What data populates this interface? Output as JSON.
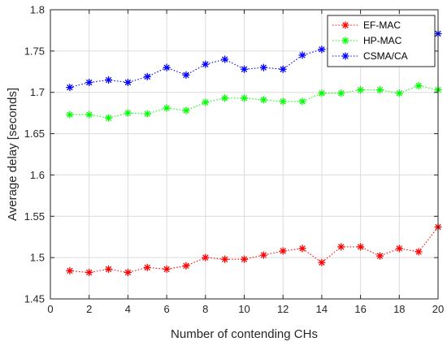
{
  "chart_data": {
    "type": "line",
    "title": "",
    "xlabel": "Number of contending CHs",
    "ylabel": "Average delay [seconds]",
    "xlim": [
      0,
      20
    ],
    "ylim": [
      1.45,
      1.8
    ],
    "xticks": [
      0,
      2,
      4,
      6,
      8,
      10,
      12,
      14,
      16,
      18,
      20
    ],
    "yticks": [
      1.45,
      1.5,
      1.55,
      1.6,
      1.65,
      1.7,
      1.75,
      1.8
    ],
    "xtick_labels": [
      "0",
      "2",
      "4",
      "6",
      "8",
      "10",
      "12",
      "14",
      "16",
      "18",
      "20"
    ],
    "ytick_labels": [
      "1.45",
      "1.5",
      "1.55",
      "1.6",
      "1.65",
      "1.7",
      "1.75",
      "1.8"
    ],
    "grid": true,
    "legend_position": "top-right",
    "x": [
      1,
      2,
      3,
      4,
      5,
      6,
      7,
      8,
      9,
      10,
      11,
      12,
      13,
      14,
      15,
      16,
      17,
      18,
      19,
      20
    ],
    "series": [
      {
        "name": "EF-MAC",
        "color": "#ff0000",
        "values": [
          1.484,
          1.482,
          1.486,
          1.482,
          1.488,
          1.486,
          1.49,
          1.5,
          1.498,
          1.498,
          1.503,
          1.508,
          1.511,
          1.494,
          1.513,
          1.513,
          1.502,
          1.511,
          1.507,
          1.537
        ]
      },
      {
        "name": "HP-MAC",
        "color": "#00ff00",
        "values": [
          1.673,
          1.673,
          1.669,
          1.675,
          1.674,
          1.681,
          1.678,
          1.688,
          1.693,
          1.693,
          1.691,
          1.689,
          1.689,
          1.699,
          1.699,
          1.703,
          1.703,
          1.699,
          1.708,
          1.703
        ]
      },
      {
        "name": "CSMA/CA",
        "color": "#0000ff",
        "values": [
          1.706,
          1.712,
          1.715,
          1.712,
          1.719,
          1.73,
          1.721,
          1.734,
          1.74,
          1.728,
          1.73,
          1.728,
          1.745,
          1.752,
          1.755,
          1.76,
          1.762,
          1.763,
          1.75,
          1.771
        ]
      }
    ]
  }
}
